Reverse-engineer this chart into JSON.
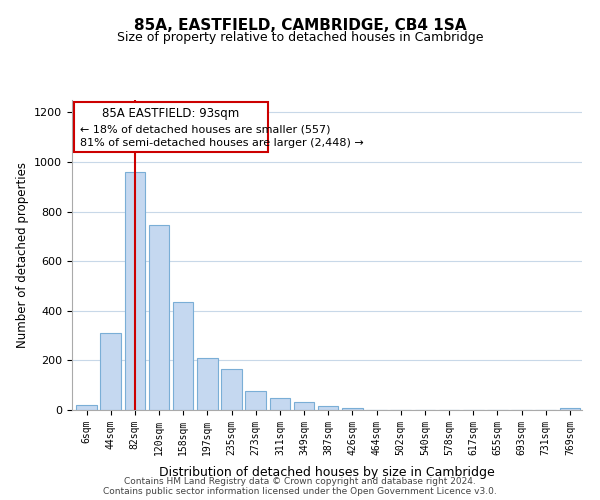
{
  "title": "85A, EASTFIELD, CAMBRIDGE, CB4 1SA",
  "subtitle": "Size of property relative to detached houses in Cambridge",
  "xlabel": "Distribution of detached houses by size in Cambridge",
  "ylabel": "Number of detached properties",
  "bar_color": "#c5d8f0",
  "bar_edge_color": "#7aaed6",
  "categories": [
    "6sqm",
    "44sqm",
    "82sqm",
    "120sqm",
    "158sqm",
    "197sqm",
    "235sqm",
    "273sqm",
    "311sqm",
    "349sqm",
    "387sqm",
    "426sqm",
    "464sqm",
    "502sqm",
    "540sqm",
    "578sqm",
    "617sqm",
    "655sqm",
    "693sqm",
    "731sqm",
    "769sqm"
  ],
  "values": [
    20,
    310,
    960,
    745,
    435,
    210,
    165,
    75,
    48,
    33,
    18,
    8,
    0,
    0,
    0,
    0,
    0,
    0,
    0,
    0,
    10
  ],
  "property_line_x": 2,
  "annotation_title": "85A EASTFIELD: 93sqm",
  "annotation_line1": "← 18% of detached houses are smaller (557)",
  "annotation_line2": "81% of semi-detached houses are larger (2,448) →",
  "ylim": [
    0,
    1250
  ],
  "yticks": [
    0,
    200,
    400,
    600,
    800,
    1000,
    1200
  ],
  "footnote1": "Contains HM Land Registry data © Crown copyright and database right 2024.",
  "footnote2": "Contains public sector information licensed under the Open Government Licence v3.0.",
  "line_color": "#cc0000",
  "bg_color": "#ffffff",
  "grid_color": "#c8d8e8"
}
